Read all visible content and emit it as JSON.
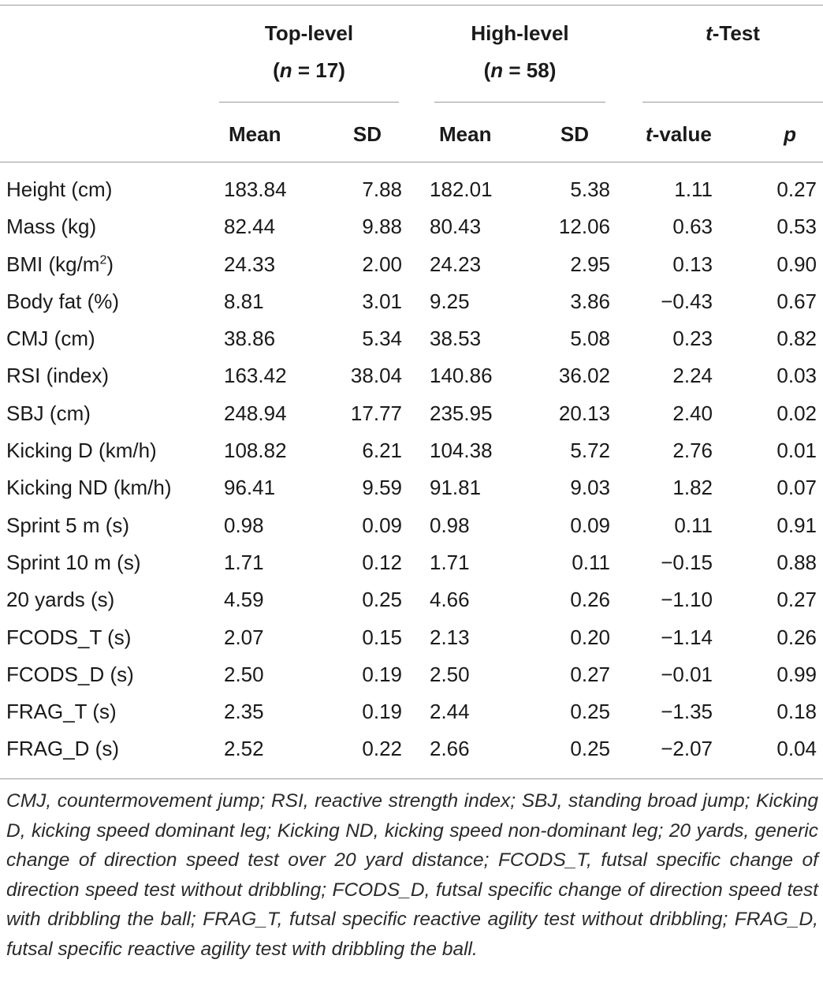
{
  "header": {
    "group1_title": "Top-level",
    "group1_n": "(n = 17)",
    "group2_title": "High-level",
    "group2_n": "(n = 58)",
    "group3_title_t": "t",
    "group3_title_rest": "-Test",
    "col_mean": "Mean",
    "col_sd": "SD",
    "col_t_italic": "t",
    "col_t_rest": "-value",
    "col_p": "p"
  },
  "rows": [
    {
      "label": "Height (cm)",
      "top_mean": "183.84",
      "top_sd": "7.88",
      "high_mean": "182.01",
      "high_sd": "5.38",
      "t": "1.11",
      "p": "0.27"
    },
    {
      "label": "Mass (kg)",
      "top_mean": "82.44",
      "top_sd": "9.88",
      "high_mean": "80.43",
      "high_sd": "12.06",
      "t": "0.63",
      "p": "0.53"
    },
    {
      "label": "BMI (kg/m",
      "label_sup": "2",
      "label_end": ")",
      "top_mean": "24.33",
      "top_sd": "2.00",
      "high_mean": "24.23",
      "high_sd": "2.95",
      "t": "0.13",
      "p": "0.90"
    },
    {
      "label": "Body fat (%)",
      "top_mean": "8.81",
      "top_sd": "3.01",
      "high_mean": "9.25",
      "high_sd": "3.86",
      "t": "−0.43",
      "p": "0.67"
    },
    {
      "label": "CMJ (cm)",
      "top_mean": "38.86",
      "top_sd": "5.34",
      "high_mean": "38.53",
      "high_sd": "5.08",
      "t": "0.23",
      "p": "0.82"
    },
    {
      "label": "RSI (index)",
      "top_mean": "163.42",
      "top_sd": "38.04",
      "high_mean": "140.86",
      "high_sd": "36.02",
      "t": "2.24",
      "p": "0.03"
    },
    {
      "label": "SBJ (cm)",
      "top_mean": "248.94",
      "top_sd": "17.77",
      "high_mean": "235.95",
      "high_sd": "20.13",
      "t": "2.40",
      "p": "0.02"
    },
    {
      "label": "Kicking D (km/h)",
      "top_mean": "108.82",
      "top_sd": "6.21",
      "high_mean": "104.38",
      "high_sd": "5.72",
      "t": "2.76",
      "p": "0.01"
    },
    {
      "label": "Kicking ND (km/h)",
      "top_mean": "96.41",
      "top_sd": "9.59",
      "high_mean": "91.81",
      "high_sd": "9.03",
      "t": "1.82",
      "p": "0.07"
    },
    {
      "label": "Sprint 5 m (s)",
      "top_mean": "0.98",
      "top_sd": "0.09",
      "high_mean": "0.98",
      "high_sd": "0.09",
      "t": "0.11",
      "p": "0.91"
    },
    {
      "label": "Sprint 10 m (s)",
      "top_mean": "1.71",
      "top_sd": "0.12",
      "high_mean": "1.71",
      "high_sd": "0.11",
      "t": "−0.15",
      "p": "0.88"
    },
    {
      "label": "20 yards (s)",
      "top_mean": "4.59",
      "top_sd": "0.25",
      "high_mean": "4.66",
      "high_sd": "0.26",
      "t": "−1.10",
      "p": "0.27"
    },
    {
      "label": "FCODS_T (s)",
      "top_mean": "2.07",
      "top_sd": "0.15",
      "high_mean": "2.13",
      "high_sd": "0.20",
      "t": "−1.14",
      "p": "0.26"
    },
    {
      "label": "FCODS_D (s)",
      "top_mean": "2.50",
      "top_sd": "0.19",
      "high_mean": "2.50",
      "high_sd": "0.27",
      "t": "−0.01",
      "p": "0.99"
    },
    {
      "label": "FRAG_T (s)",
      "top_mean": "2.35",
      "top_sd": "0.19",
      "high_mean": "2.44",
      "high_sd": "0.25",
      "t": "−1.35",
      "p": "0.18"
    },
    {
      "label": "FRAG_D (s)",
      "top_mean": "2.52",
      "top_sd": "0.22",
      "high_mean": "2.66",
      "high_sd": "0.25",
      "t": "−2.07",
      "p": "0.04"
    }
  ],
  "footnote": "CMJ, countermovement jump; RSI, reactive strength index; SBJ, standing broad jump; Kicking D, kicking speed dominant leg; Kicking ND, kicking speed non-dominant leg; 20 yards, generic change of direction speed test over 20 yard distance; FCODS_T, futsal specific change of direction speed test without dribbling; FCODS_D, futsal specific change of direction speed test with dribbling the ball; FRAG_T, futsal specific reactive agility test without dribbling; FRAG_D, futsal specific reactive agility test with dribbling the ball."
}
